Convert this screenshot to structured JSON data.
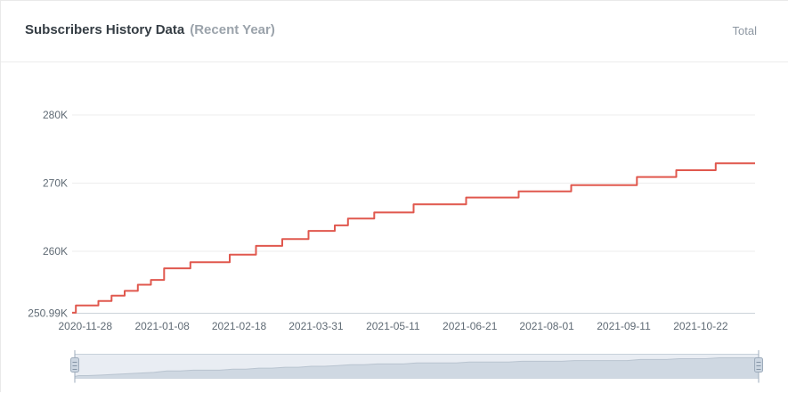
{
  "header": {
    "title": "Subscribers History Data",
    "subtitle": "(Recent Year)",
    "total_label": "Total"
  },
  "colors": {
    "line": "#e0584e",
    "grid": "#ededed",
    "axis_line": "#ccd3d9",
    "axis_text": "#606b75",
    "title_text": "#353d44",
    "subtitle_text": "#9ba3ab",
    "total_text": "#8d97a2",
    "slider_track": "#e9edf3",
    "slider_fill": "#cfd8e2",
    "slider_edge": "#b9c4d0",
    "slider_border": "#c8d1da",
    "handle_fill": "#ccd6e1",
    "handle_stroke": "#9dabbb",
    "handle_grip": "#8494a6"
  },
  "chart_data": {
    "type": "line",
    "step": "after",
    "title": "Subscribers History Data (Recent Year)",
    "series_name": "Total",
    "values_unit": "thousands of subscribers",
    "x_axis_type": "time",
    "grid_on": true,
    "legend": "none",
    "ylim_thousands": [
      250.99,
      283.5
    ],
    "y_ticks": [
      {
        "label": "280K",
        "value": 280,
        "grid": true
      },
      {
        "label": "270K",
        "value": 270,
        "grid": true
      },
      {
        "label": "260K",
        "value": 260,
        "grid": true
      },
      {
        "label": "250.99K",
        "value": 250.99,
        "grid": false
      }
    ],
    "x_tick_labels": [
      "2020-11-28",
      "2021-01-08",
      "2021-02-18",
      "2021-03-31",
      "2021-05-11",
      "2021-06-21",
      "2021-08-01",
      "2021-09-11",
      "2021-10-22"
    ],
    "dates": [
      "2020-11-21",
      "2020-11-23",
      "2020-11-28",
      "2020-12-05",
      "2020-12-12",
      "2020-12-19",
      "2020-12-26",
      "2021-01-02",
      "2021-01-09",
      "2021-01-16",
      "2021-01-23",
      "2021-01-30",
      "2021-02-06",
      "2021-02-13",
      "2021-02-20",
      "2021-02-27",
      "2021-03-06",
      "2021-03-13",
      "2021-03-20",
      "2021-03-27",
      "2021-04-03",
      "2021-04-10",
      "2021-04-17",
      "2021-04-24",
      "2021-05-01",
      "2021-05-08",
      "2021-05-15",
      "2021-05-22",
      "2021-05-29",
      "2021-06-05",
      "2021-06-12",
      "2021-06-19",
      "2021-06-26",
      "2021-07-03",
      "2021-07-10",
      "2021-07-17",
      "2021-07-24",
      "2021-07-31",
      "2021-08-07",
      "2021-08-14",
      "2021-08-21",
      "2021-08-28",
      "2021-09-04",
      "2021-09-11",
      "2021-09-18",
      "2021-09-25",
      "2021-10-02",
      "2021-10-09",
      "2021-10-16",
      "2021-10-23",
      "2021-10-30",
      "2021-11-06",
      "2021-11-13",
      "2021-11-20"
    ],
    "values_thousands": [
      250.99,
      252.05,
      252.05,
      252.7,
      253.5,
      254.2,
      255.1,
      255.8,
      257.5,
      257.5,
      258.4,
      258.4,
      258.4,
      259.5,
      259.5,
      260.8,
      260.8,
      261.8,
      261.8,
      263.0,
      263.0,
      263.8,
      264.8,
      264.8,
      265.7,
      265.7,
      265.7,
      266.9,
      266.9,
      266.9,
      266.9,
      267.9,
      267.9,
      267.9,
      267.9,
      268.8,
      268.8,
      268.8,
      268.8,
      269.7,
      269.7,
      269.7,
      269.7,
      269.7,
      270.9,
      270.9,
      270.9,
      271.9,
      271.9,
      271.9,
      272.9,
      272.9,
      272.9,
      272.9
    ]
  }
}
